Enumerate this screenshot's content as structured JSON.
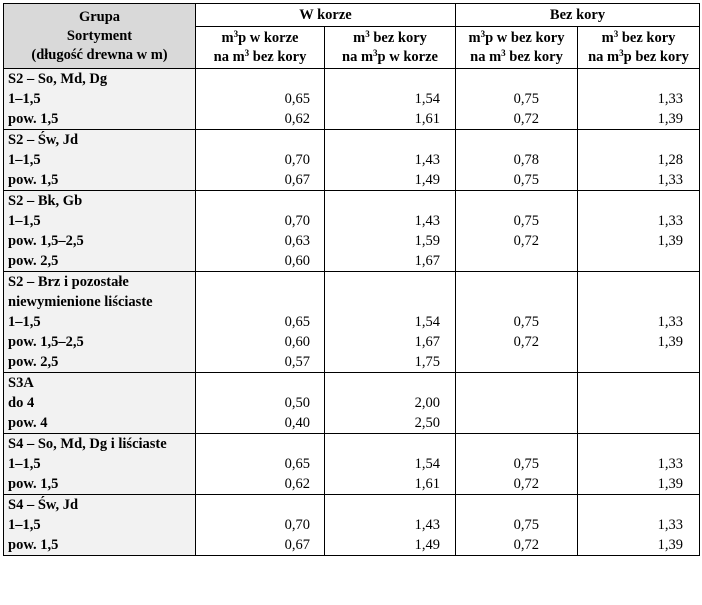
{
  "header": {
    "col0": [
      "Grupa",
      "Sortyment",
      "(długość drewna w m)"
    ],
    "w_korze": "W korze",
    "bez_kory": "Bez kory",
    "sub": [
      {
        "l1a": "m",
        "l1sup": "3",
        "l1b": "p w korze",
        "l2a": "na m",
        "l2sup": "3",
        "l2b": " bez kory"
      },
      {
        "l1a": "m",
        "l1sup": "3",
        "l1b": " bez kory",
        "l2a": "na m",
        "l2sup": "3",
        "l2b": "p w korze"
      },
      {
        "l1a": "m",
        "l1sup": "3",
        "l1b": "p w bez kory",
        "l2a": "na m",
        "l2sup": "3",
        "l2b": " bez kory"
      },
      {
        "l1a": "m",
        "l1sup": "3",
        "l1b": " bez kory",
        "l2a": "na m",
        "l2sup": "3",
        "l2b": "p bez kory"
      }
    ]
  },
  "groups": [
    {
      "labels": [
        "S2 – So, Md, Dg",
        "1–1,5",
        "pow. 1,5"
      ],
      "c1": [
        "",
        "0,65",
        "0,62"
      ],
      "c2": [
        "",
        "1,54",
        "1,61"
      ],
      "c3": [
        "",
        "0,75",
        "0,72"
      ],
      "c4": [
        "",
        "1,33",
        "1,39"
      ]
    },
    {
      "labels": [
        "S2 – Św, Jd",
        "1–1,5",
        "pow. 1,5"
      ],
      "c1": [
        "",
        "0,70",
        "0,67"
      ],
      "c2": [
        "",
        "1,43",
        "1,49"
      ],
      "c3": [
        "",
        "0,78",
        "0,75"
      ],
      "c4": [
        "",
        "1,28",
        "1,33"
      ]
    },
    {
      "labels": [
        "S2 – Bk, Gb",
        "1–1,5",
        "pow. 1,5–2,5",
        "pow. 2,5"
      ],
      "c1": [
        "",
        "0,70",
        "0,63",
        "0,60"
      ],
      "c2": [
        "",
        "1,43",
        "1,59",
        "1,67"
      ],
      "c3": [
        "",
        "0,75",
        "0,72",
        ""
      ],
      "c4": [
        "",
        "1,33",
        "1,39",
        ""
      ]
    },
    {
      "labels": [
        "S2 – Brz i pozostałe",
        "niewymienione liściaste",
        "1–1,5",
        "pow. 1,5–2,5",
        "pow. 2,5"
      ],
      "c1": [
        "",
        "",
        "0,65",
        "0,60",
        "0,57"
      ],
      "c2": [
        "",
        "",
        "1,54",
        "1,67",
        "1,75"
      ],
      "c3": [
        "",
        "",
        "0,75",
        "0,72",
        ""
      ],
      "c4": [
        "",
        "",
        "1,33",
        "1,39",
        ""
      ]
    },
    {
      "labels": [
        "S3A",
        "do 4",
        "pow. 4"
      ],
      "c1": [
        "",
        "0,50",
        "0,40"
      ],
      "c2": [
        "",
        "2,00",
        "2,50"
      ],
      "c3": [
        "",
        "",
        ""
      ],
      "c4": [
        "",
        "",
        ""
      ]
    },
    {
      "labels": [
        "S4 – So, Md, Dg i liściaste",
        "1–1,5",
        "pow. 1,5"
      ],
      "c1": [
        "",
        "0,65",
        "0,62"
      ],
      "c2": [
        "",
        "1,54",
        "1,61"
      ],
      "c3": [
        "",
        "0,75",
        "0,72"
      ],
      "c4": [
        "",
        "1,33",
        "1,39"
      ]
    },
    {
      "labels": [
        "S4 – Św, Jd",
        "1–1,5",
        "pow. 1,5"
      ],
      "c1": [
        "",
        "0,70",
        "0,67"
      ],
      "c2": [
        "",
        "1,43",
        "1,49"
      ],
      "c3": [
        "",
        "0,75",
        "0,72"
      ],
      "c4": [
        "",
        "1,33",
        "1,39"
      ]
    }
  ]
}
